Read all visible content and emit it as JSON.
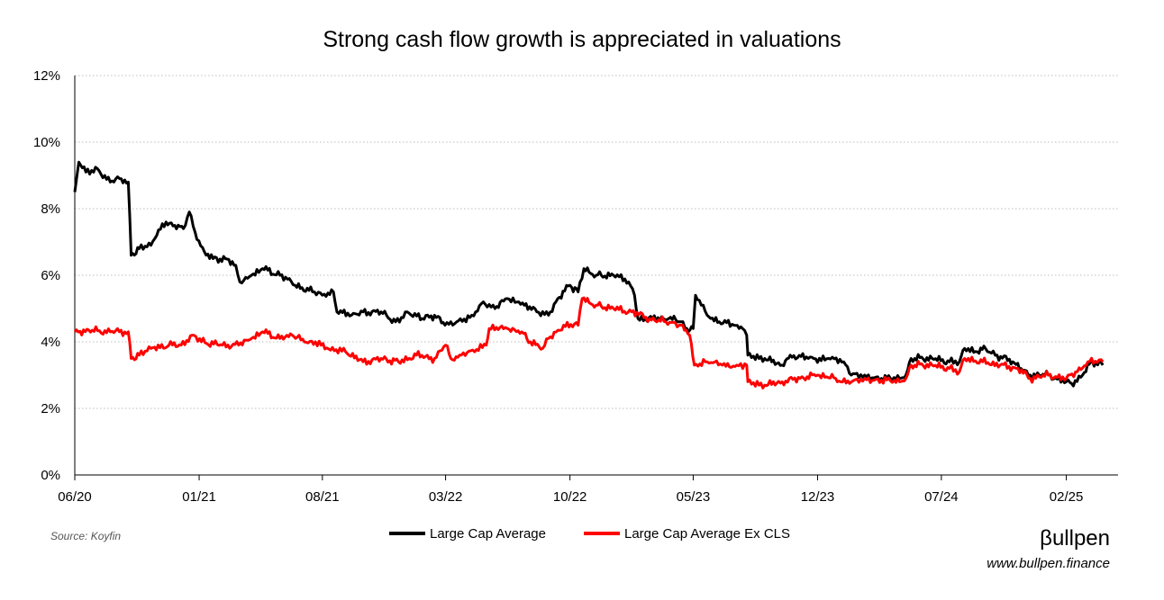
{
  "chart_data": {
    "type": "line",
    "title": "Strong cash flow growth is appreciated in valuations",
    "xlabel": "",
    "ylabel": "",
    "x_tick_labels": [
      "06/20",
      "01/21",
      "08/21",
      "03/22",
      "10/22",
      "05/23",
      "12/23",
      "07/24",
      "02/25"
    ],
    "y_tick_labels": [
      "0%",
      "2%",
      "4%",
      "6%",
      "8%",
      "10%",
      "12%"
    ],
    "ylim": [
      0,
      12
    ],
    "grid": "horizontal dotted",
    "legend_position": "bottom",
    "series": [
      {
        "name": "Large Cap Average",
        "color": "#000000",
        "points": [
          [
            "2020-06-01",
            8.5
          ],
          [
            "2020-06-08",
            9.4
          ],
          [
            "2020-06-20",
            9.1
          ],
          [
            "2020-07-10",
            9.2
          ],
          [
            "2020-08-01",
            8.8
          ],
          [
            "2020-08-20",
            8.9
          ],
          [
            "2020-09-01",
            8.8
          ],
          [
            "2020-09-06",
            6.6
          ],
          [
            "2020-09-20",
            6.8
          ],
          [
            "2020-10-10",
            6.9
          ],
          [
            "2020-10-20",
            7.2
          ],
          [
            "2020-11-05",
            7.6
          ],
          [
            "2020-11-20",
            7.5
          ],
          [
            "2020-12-05",
            7.4
          ],
          [
            "2020-12-15",
            7.9
          ],
          [
            "2020-12-25",
            7.3
          ],
          [
            "2021-01-10",
            6.7
          ],
          [
            "2021-01-25",
            6.5
          ],
          [
            "2021-02-15",
            6.5
          ],
          [
            "2021-03-05",
            6.3
          ],
          [
            "2021-03-12",
            5.8
          ],
          [
            "2021-04-01",
            6.0
          ],
          [
            "2021-04-20",
            6.2
          ],
          [
            "2021-05-20",
            6.0
          ],
          [
            "2021-06-15",
            5.7
          ],
          [
            "2021-07-15",
            5.5
          ],
          [
            "2021-08-01",
            5.4
          ],
          [
            "2021-08-20",
            5.5
          ],
          [
            "2021-08-26",
            4.9
          ],
          [
            "2021-09-20",
            4.8
          ],
          [
            "2021-10-10",
            4.9
          ],
          [
            "2021-11-10",
            4.9
          ],
          [
            "2021-12-05",
            4.6
          ],
          [
            "2021-12-25",
            4.9
          ],
          [
            "2022-01-20",
            4.7
          ],
          [
            "2022-02-10",
            4.8
          ],
          [
            "2022-02-28",
            4.5
          ],
          [
            "2022-03-20",
            4.6
          ],
          [
            "2022-04-15",
            4.8
          ],
          [
            "2022-05-05",
            5.2
          ],
          [
            "2022-05-25",
            5.0
          ],
          [
            "2022-06-15",
            5.3
          ],
          [
            "2022-07-05",
            5.2
          ],
          [
            "2022-08-05",
            4.9
          ],
          [
            "2022-08-25",
            4.8
          ],
          [
            "2022-09-10",
            5.3
          ],
          [
            "2022-10-01",
            5.7
          ],
          [
            "2022-10-15",
            5.5
          ],
          [
            "2022-10-25",
            6.2
          ],
          [
            "2022-11-15",
            6.0
          ],
          [
            "2022-12-15",
            6.0
          ],
          [
            "2023-01-10",
            5.8
          ],
          [
            "2023-01-20",
            5.4
          ],
          [
            "2023-01-26",
            4.7
          ],
          [
            "2023-02-20",
            4.7
          ],
          [
            "2023-03-20",
            4.7
          ],
          [
            "2023-04-10",
            4.6
          ],
          [
            "2023-04-20",
            4.4
          ],
          [
            "2023-05-01",
            4.4
          ],
          [
            "2023-05-05",
            5.4
          ],
          [
            "2023-05-15",
            5.1
          ],
          [
            "2023-05-25",
            4.8
          ],
          [
            "2023-06-15",
            4.6
          ],
          [
            "2023-07-10",
            4.5
          ],
          [
            "2023-07-25",
            4.4
          ],
          [
            "2023-08-01",
            4.2
          ],
          [
            "2023-08-03",
            3.6
          ],
          [
            "2023-09-01",
            3.5
          ],
          [
            "2023-10-01",
            3.3
          ],
          [
            "2023-10-15",
            3.6
          ],
          [
            "2023-11-15",
            3.5
          ],
          [
            "2023-12-20",
            3.5
          ],
          [
            "2024-01-15",
            3.4
          ],
          [
            "2024-01-28",
            3.0
          ],
          [
            "2024-02-20",
            3.0
          ],
          [
            "2024-03-20",
            2.9
          ],
          [
            "2024-04-20",
            2.9
          ],
          [
            "2024-05-01",
            3.0
          ],
          [
            "2024-05-10",
            3.5
          ],
          [
            "2024-06-15",
            3.5
          ],
          [
            "2024-07-15",
            3.4
          ],
          [
            "2024-08-01",
            3.4
          ],
          [
            "2024-08-10",
            3.8
          ],
          [
            "2024-09-01",
            3.7
          ],
          [
            "2024-09-15",
            3.8
          ],
          [
            "2024-10-05",
            3.6
          ],
          [
            "2024-11-01",
            3.4
          ],
          [
            "2024-11-15",
            3.2
          ],
          [
            "2024-12-01",
            3.0
          ],
          [
            "2025-01-01",
            3.0
          ],
          [
            "2025-02-01",
            2.8
          ],
          [
            "2025-02-10",
            2.75
          ],
          [
            "2025-03-01",
            3.0
          ],
          [
            "2025-03-15",
            3.4
          ],
          [
            "2025-04-05",
            3.3
          ]
        ]
      },
      {
        "name": "Large Cap Average Ex CLS",
        "color": "#ff0000",
        "points": [
          [
            "2020-06-01",
            4.3
          ],
          [
            "2020-07-01",
            4.35
          ],
          [
            "2020-08-01",
            4.3
          ],
          [
            "2020-09-01",
            4.3
          ],
          [
            "2020-09-06",
            3.5
          ],
          [
            "2020-09-20",
            3.6
          ],
          [
            "2020-10-10",
            3.8
          ],
          [
            "2020-11-10",
            3.9
          ],
          [
            "2020-12-01",
            3.9
          ],
          [
            "2020-12-20",
            4.2
          ],
          [
            "2021-01-05",
            4.0
          ],
          [
            "2021-02-10",
            3.9
          ],
          [
            "2021-03-10",
            3.9
          ],
          [
            "2021-04-01",
            4.1
          ],
          [
            "2021-04-20",
            4.3
          ],
          [
            "2021-05-20",
            4.1
          ],
          [
            "2021-06-10",
            4.2
          ],
          [
            "2021-07-01",
            4.0
          ],
          [
            "2021-07-20",
            4.0
          ],
          [
            "2021-08-15",
            3.75
          ],
          [
            "2021-09-10",
            3.7
          ],
          [
            "2021-10-10",
            3.4
          ],
          [
            "2021-11-10",
            3.5
          ],
          [
            "2021-12-10",
            3.4
          ],
          [
            "2022-01-10",
            3.6
          ],
          [
            "2022-02-10",
            3.5
          ],
          [
            "2022-03-01",
            3.9
          ],
          [
            "2022-03-10",
            3.5
          ],
          [
            "2022-03-25",
            3.6
          ],
          [
            "2022-04-20",
            3.7
          ],
          [
            "2022-05-10",
            3.9
          ],
          [
            "2022-05-15",
            4.4
          ],
          [
            "2022-06-15",
            4.4
          ],
          [
            "2022-07-10",
            4.3
          ],
          [
            "2022-07-25",
            4.0
          ],
          [
            "2022-08-15",
            3.8
          ],
          [
            "2022-08-25",
            4.1
          ],
          [
            "2022-09-20",
            4.5
          ],
          [
            "2022-10-15",
            4.5
          ],
          [
            "2022-10-22",
            5.3
          ],
          [
            "2022-11-15",
            5.1
          ],
          [
            "2022-12-15",
            5.0
          ],
          [
            "2023-01-15",
            4.9
          ],
          [
            "2023-02-15",
            4.7
          ],
          [
            "2023-03-15",
            4.6
          ],
          [
            "2023-04-10",
            4.5
          ],
          [
            "2023-04-25",
            4.2
          ],
          [
            "2023-05-03",
            3.3
          ],
          [
            "2023-05-25",
            3.4
          ],
          [
            "2023-06-20",
            3.3
          ],
          [
            "2023-07-15",
            3.3
          ],
          [
            "2023-08-01",
            3.3
          ],
          [
            "2023-08-03",
            2.8
          ],
          [
            "2023-09-01",
            2.7
          ],
          [
            "2023-10-01",
            2.8
          ],
          [
            "2023-11-01",
            2.9
          ],
          [
            "2023-12-01",
            3.0
          ],
          [
            "2024-01-01",
            2.9
          ],
          [
            "2024-01-25",
            2.75
          ],
          [
            "2024-02-20",
            2.9
          ],
          [
            "2024-03-20",
            2.85
          ],
          [
            "2024-04-20",
            2.8
          ],
          [
            "2024-05-01",
            2.9
          ],
          [
            "2024-05-10",
            3.3
          ],
          [
            "2024-06-15",
            3.3
          ],
          [
            "2024-07-15",
            3.2
          ],
          [
            "2024-08-01",
            3.1
          ],
          [
            "2024-08-10",
            3.5
          ],
          [
            "2024-09-10",
            3.4
          ],
          [
            "2024-10-10",
            3.3
          ],
          [
            "2024-11-10",
            3.2
          ],
          [
            "2024-12-01",
            2.9
          ],
          [
            "2025-01-01",
            3.0
          ],
          [
            "2025-02-01",
            2.9
          ],
          [
            "2025-02-20",
            3.1
          ],
          [
            "2025-03-10",
            3.4
          ],
          [
            "2025-04-05",
            3.4
          ]
        ]
      }
    ]
  },
  "footer": {
    "source": "Source: Koyfin",
    "brand": "βullpen",
    "site": "www.bullpen.finance"
  }
}
